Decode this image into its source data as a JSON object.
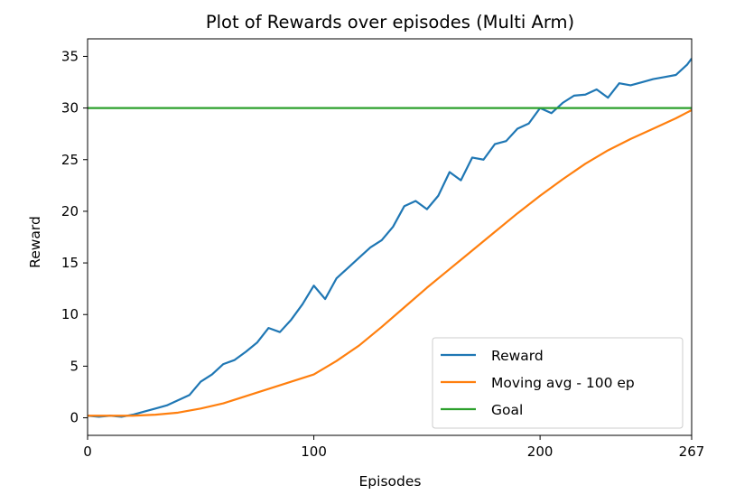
{
  "chart_data": {
    "type": "line",
    "title": "Plot of Rewards over episodes (Multi Arm)",
    "xlabel": "Episodes",
    "ylabel": "Reward",
    "xlim": [
      0,
      267
    ],
    "ylim": [
      -1.7,
      36.7
    ],
    "x_ticks": [
      0,
      100,
      200,
      267
    ],
    "y_ticks": [
      0,
      5,
      10,
      15,
      20,
      25,
      30,
      35
    ],
    "grid": false,
    "legend_position": "lower-right",
    "series": [
      {
        "name": "Reward",
        "color": "#1f77b4",
        "kind": "points",
        "x": [
          0,
          5,
          10,
          15,
          20,
          25,
          30,
          35,
          40,
          45,
          50,
          55,
          60,
          65,
          70,
          75,
          80,
          85,
          90,
          95,
          100,
          105,
          110,
          115,
          120,
          125,
          130,
          135,
          140,
          145,
          150,
          155,
          160,
          165,
          170,
          175,
          180,
          185,
          190,
          195,
          200,
          205,
          210,
          215,
          220,
          225,
          230,
          235,
          240,
          245,
          250,
          255,
          260,
          265,
          267
        ],
        "y": [
          0.2,
          0.1,
          0.2,
          0.1,
          0.3,
          0.6,
          0.9,
          1.2,
          1.7,
          2.2,
          3.5,
          4.2,
          5.2,
          5.6,
          6.4,
          7.3,
          8.7,
          8.3,
          9.5,
          11.0,
          12.8,
          11.5,
          13.5,
          14.5,
          15.5,
          16.5,
          17.2,
          18.5,
          20.5,
          21.0,
          20.2,
          21.5,
          23.8,
          23.0,
          25.2,
          25.0,
          26.5,
          26.8,
          28.0,
          28.5,
          30.0,
          29.5,
          30.5,
          31.2,
          31.3,
          31.8,
          31.0,
          32.4,
          32.2,
          32.5,
          32.8,
          33.0,
          33.2,
          34.2,
          34.8
        ]
      },
      {
        "name": "Moving avg - 100 ep",
        "color": "#ff7f0e",
        "kind": "points",
        "x": [
          0,
          10,
          20,
          30,
          40,
          50,
          60,
          70,
          80,
          90,
          100,
          110,
          120,
          130,
          140,
          150,
          160,
          170,
          180,
          190,
          200,
          210,
          220,
          230,
          240,
          250,
          260,
          267
        ],
        "y": [
          0.2,
          0.2,
          0.2,
          0.3,
          0.5,
          0.9,
          1.4,
          2.1,
          2.8,
          3.5,
          4.2,
          5.5,
          7.0,
          8.8,
          10.7,
          12.6,
          14.4,
          16.2,
          18.0,
          19.8,
          21.5,
          23.1,
          24.6,
          25.9,
          27.0,
          28.0,
          29.0,
          29.8
        ]
      },
      {
        "name": "Goal",
        "color": "#2ca02c",
        "kind": "constant",
        "value": 30
      }
    ]
  }
}
